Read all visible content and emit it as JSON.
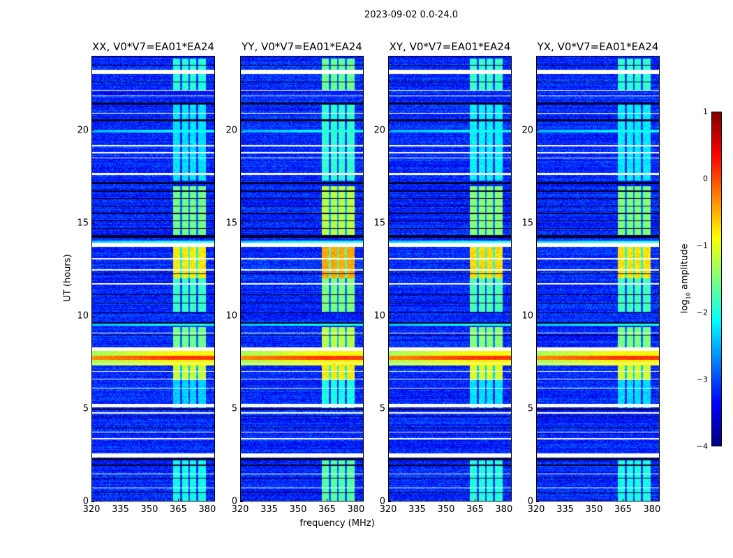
{
  "chart_data": {
    "type": "heatmap",
    "title": "2023-09-02 0.0-24.0",
    "xlabel": "frequency (MHz)",
    "ylabel": "UT (hours)",
    "xlim": [
      320,
      384
    ],
    "ylim": [
      0,
      24
    ],
    "xticks": [
      "320",
      "335",
      "350",
      "365",
      "380"
    ],
    "xtick_values": [
      320,
      335,
      350,
      365,
      380
    ],
    "yticks": [
      "0",
      "5",
      "10",
      "15",
      "20"
    ],
    "ytick_values": [
      0,
      5,
      10,
      15,
      20
    ],
    "colormap": "jet",
    "colorbar": {
      "label_main": "log",
      "label_sub": "10",
      "label_rest": " amplitude",
      "range": [
        -4,
        1
      ],
      "ticks": [
        "1",
        "0",
        "−1",
        "−2",
        "−3",
        "−4"
      ],
      "tick_values": [
        1,
        0,
        -1,
        -2,
        -3,
        -4
      ]
    },
    "panels": [
      {
        "title": "XX, V0*V7=EA01*EA24",
        "rfi_offset": -0.35
      },
      {
        "title": "YY, V0*V7=EA01*EA24",
        "rfi_offset": 0.0
      },
      {
        "title": "XY, V0*V7=EA01*EA24",
        "rfi_offset": -0.25
      },
      {
        "title": "YX, V0*V7=EA01*EA24",
        "rfi_offset": -0.3
      }
    ],
    "background_level": -3.2,
    "rfi_band_mhz": [
      362.5,
      379.5
    ],
    "rfi_gaps_mhz": [
      366.5,
      370.8,
      375.0
    ],
    "rfi_events": [
      {
        "ut": [
          22.2,
          23.9
        ],
        "level": -1.6
      },
      {
        "ut": [
          17.3,
          21.5
        ],
        "level": -1.9
      },
      {
        "ut": [
          14.3,
          17.0
        ],
        "level": -1.2
      },
      {
        "ut": [
          12.0,
          13.75
        ],
        "level": -0.45
      },
      {
        "ut": [
          10.2,
          12.0
        ],
        "level": -1.5
      },
      {
        "ut": [
          8.2,
          9.4
        ],
        "level": -1.2
      },
      {
        "ut": [
          6.5,
          7.4
        ],
        "level": -0.8
      },
      {
        "ut": [
          5.0,
          6.5
        ],
        "level": -2.0
      },
      {
        "ut": [
          0.0,
          2.3
        ],
        "level": -1.7
      }
    ],
    "broadband_events": [
      {
        "ut": [
          7.3,
          8.1
        ],
        "level": -0.9
      },
      {
        "ut": [
          7.6,
          7.85
        ],
        "level": 0.1
      },
      {
        "ut": [
          13.85,
          14.05
        ],
        "level": -2.0
      },
      {
        "ut": [
          9.45,
          9.58
        ],
        "level": -2.0
      },
      {
        "ut": [
          19.9,
          20.05
        ],
        "level": -2.1
      }
    ],
    "flagged_white_ut": [
      [
        23.05,
        23.3
      ],
      [
        22.15,
        22.2
      ],
      [
        21.85,
        21.9
      ],
      [
        20.9,
        20.95
      ],
      [
        19.15,
        19.2
      ],
      [
        18.75,
        18.82
      ],
      [
        18.5,
        18.55
      ],
      [
        17.6,
        17.7
      ],
      [
        13.7,
        13.95
      ],
      [
        13.05,
        13.1
      ],
      [
        12.45,
        12.5
      ],
      [
        11.68,
        11.74
      ],
      [
        9.03,
        9.08
      ],
      [
        8.1,
        8.3
      ],
      [
        7.38,
        7.43
      ],
      [
        6.98,
        7.02
      ],
      [
        6.55,
        6.6
      ],
      [
        6.08,
        6.12
      ],
      [
        5.05,
        5.25
      ],
      [
        4.7,
        4.78
      ],
      [
        3.68,
        3.73
      ],
      [
        3.33,
        3.38
      ],
      [
        2.35,
        2.55
      ],
      [
        1.43,
        1.48
      ],
      [
        0.68,
        0.73
      ]
    ],
    "flagged_black_ut": [
      [
        23.5,
        23.55
      ],
      [
        22.6,
        22.65
      ],
      [
        21.4,
        21.5
      ],
      [
        20.5,
        20.6
      ],
      [
        17.1,
        17.2
      ],
      [
        16.7,
        16.75
      ],
      [
        16.3,
        16.35
      ],
      [
        15.9,
        15.95
      ],
      [
        15.5,
        15.55
      ],
      [
        15.1,
        15.15
      ],
      [
        14.7,
        14.75
      ],
      [
        14.2,
        14.35
      ],
      [
        12.26,
        12.3
      ],
      [
        11.13,
        11.17
      ],
      [
        10.65,
        10.7
      ],
      [
        10.12,
        10.17
      ],
      [
        9.58,
        9.65
      ],
      [
        8.92,
        8.97
      ],
      [
        4.9,
        4.96
      ],
      [
        4.55,
        4.6
      ],
      [
        3.9,
        3.95
      ],
      [
        2.2,
        2.3
      ],
      [
        1.9,
        1.95
      ],
      [
        1.2,
        1.25
      ],
      [
        0.4,
        0.45
      ]
    ]
  }
}
